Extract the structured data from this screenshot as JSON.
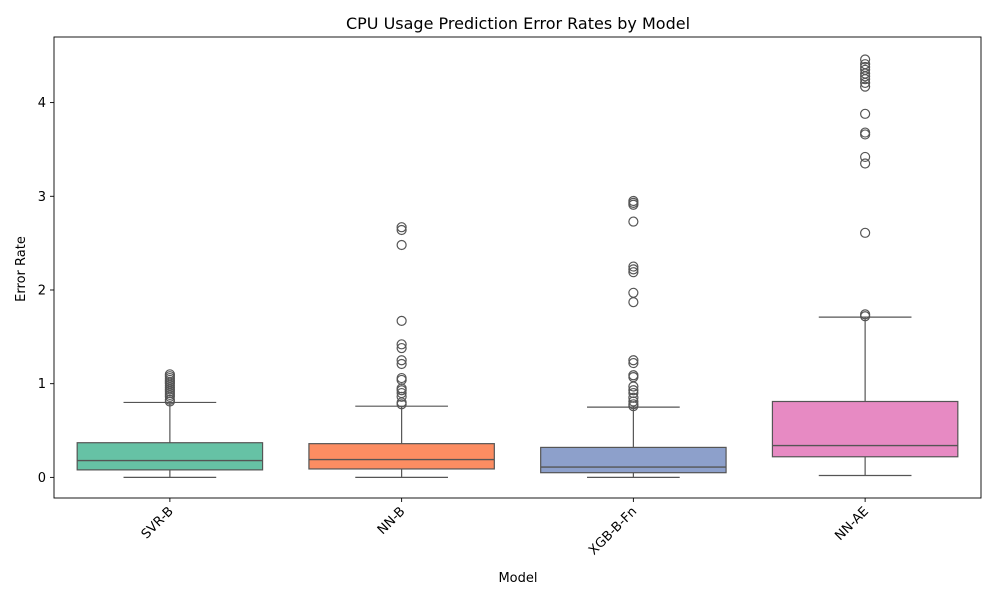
{
  "chart_data": {
    "type": "box",
    "title": "CPU Usage Prediction Error Rates by Model",
    "xlabel": "Model",
    "ylabel": "Error Rate",
    "ylim": [
      -0.22,
      4.7
    ],
    "yticks": [
      0,
      1,
      2,
      3,
      4
    ],
    "categories": [
      "SVR-B",
      "NN-B",
      "XGB-B-Fn",
      "NN-AE"
    ],
    "colors": [
      "#66c2a5",
      "#fc8d62",
      "#8da0cb",
      "#e78ac3"
    ],
    "series": [
      {
        "q1": 0.08,
        "median": 0.18,
        "q3": 0.37,
        "whisker_low": 0.0,
        "whisker_high": 0.8,
        "outliers": [
          0.81,
          0.83,
          0.86,
          0.88,
          0.9,
          0.92,
          0.94,
          0.96,
          0.98,
          1.0,
          1.02,
          1.04,
          1.06,
          1.08,
          1.1
        ]
      },
      {
        "q1": 0.09,
        "median": 0.19,
        "q3": 0.36,
        "whisker_low": 0.0,
        "whisker_high": 0.76,
        "outliers": [
          0.78,
          0.8,
          0.86,
          0.9,
          0.93,
          0.95,
          1.04,
          1.06,
          1.21,
          1.25,
          1.38,
          1.42,
          1.67,
          2.48,
          2.64,
          2.67
        ]
      },
      {
        "q1": 0.05,
        "median": 0.11,
        "q3": 0.32,
        "whisker_low": 0.0,
        "whisker_high": 0.75,
        "outliers": [
          0.76,
          0.78,
          0.81,
          0.85,
          0.9,
          0.93,
          0.97,
          1.07,
          1.09,
          1.22,
          1.25,
          1.87,
          1.97,
          2.19,
          2.22,
          2.25,
          2.73,
          2.91,
          2.93,
          2.95
        ]
      },
      {
        "q1": 0.22,
        "median": 0.34,
        "q3": 0.81,
        "whisker_low": 0.02,
        "whisker_high": 1.71,
        "outliers": [
          1.72,
          1.74,
          2.61,
          3.35,
          3.42,
          3.66,
          3.68,
          3.88,
          4.17,
          4.21,
          4.25,
          4.28,
          4.31,
          4.35,
          4.38,
          4.41,
          4.46
        ]
      }
    ]
  }
}
